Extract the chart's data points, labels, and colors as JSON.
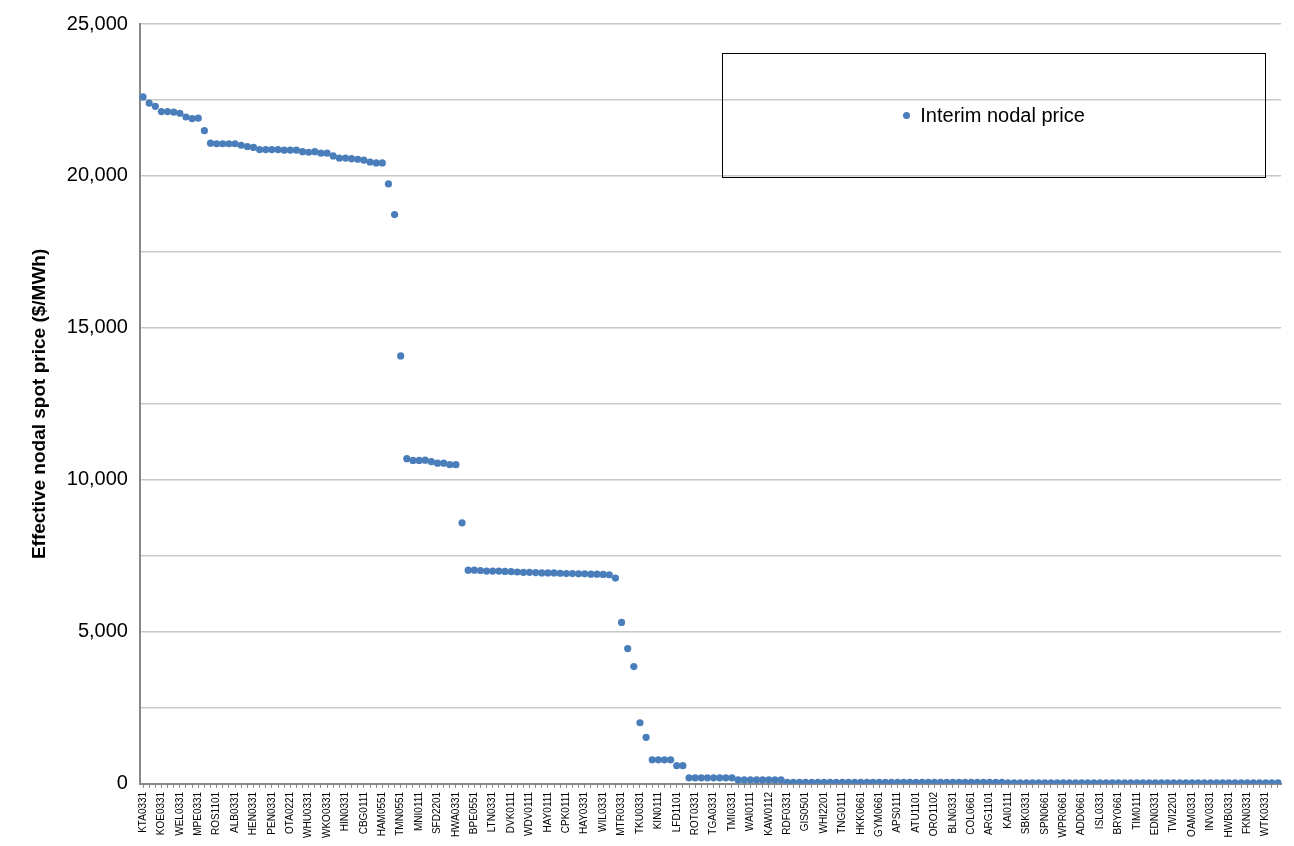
{
  "chart_data": {
    "type": "scatter",
    "ylabel": "Effective nodal spot price ($/MWh)",
    "categories": [
      "KTA0331",
      null,
      null,
      "KOE0331",
      null,
      null,
      "WEL0331",
      null,
      null,
      "MPE0331",
      null,
      null,
      "ROS1101",
      null,
      null,
      "ALB0331",
      null,
      null,
      "HEN0331",
      null,
      null,
      "PEN0331",
      null,
      null,
      "OTA0221",
      null,
      null,
      "WHU0331",
      null,
      null,
      "WKO0331",
      null,
      null,
      "HIN0331",
      null,
      null,
      "CBG0111",
      null,
      null,
      "HAM0551",
      null,
      null,
      "TMN0551",
      null,
      null,
      "MNI0111",
      null,
      null,
      "SFD2201",
      null,
      null,
      "HWA0331",
      null,
      null,
      "BPE0551",
      null,
      null,
      "LTN0331",
      null,
      null,
      "DVK0111",
      null,
      null,
      "WDV0111",
      null,
      null,
      "HAY0111",
      null,
      null,
      "CPK0111",
      null,
      null,
      "HAY0331",
      null,
      null,
      "WIL0331",
      null,
      null,
      "MTR0331",
      null,
      null,
      "TKU0331",
      null,
      null,
      "KIN0111",
      null,
      null,
      "LFD1101",
      null,
      null,
      "ROT0331",
      null,
      null,
      "TGA0331",
      null,
      null,
      "TMI0331",
      null,
      null,
      "WAI0111",
      null,
      null,
      "KAW0112",
      null,
      null,
      "RDF0331",
      null,
      null,
      "GIS0501",
      null,
      null,
      "WHI2201",
      null,
      null,
      "TNG0111",
      null,
      null,
      "HKK0661",
      null,
      null,
      "GYM0661",
      null,
      null,
      "APS0111",
      null,
      null,
      "ATU1101",
      null,
      null,
      "ORO1102",
      null,
      null,
      "BLN0331",
      null,
      null,
      "COL0661",
      null,
      null,
      "ARG1101",
      null,
      null,
      "KAI0111",
      null,
      null,
      "SBK0331",
      null,
      null,
      "SPN0661",
      null,
      null,
      "WPR0661",
      null,
      null,
      "ADD0661",
      null,
      null,
      "ISL0331",
      null,
      null,
      "BRY0661",
      null,
      null,
      "TIM0111",
      null,
      null,
      "EDN0331",
      null,
      null,
      "TWI2201",
      null,
      null,
      "OAM0331",
      null,
      null,
      "INV0331",
      null,
      null,
      "HWB0331",
      null,
      null,
      "FKN0331",
      null,
      null,
      "WTK0331",
      null,
      null
    ],
    "series": [
      {
        "name": "Interim nodal price",
        "color": "#4a7ebb",
        "values": [
          22600,
          22400,
          22290,
          22120,
          22120,
          22100,
          22060,
          21940,
          21890,
          21900,
          21490,
          21080,
          21060,
          21060,
          21060,
          21060,
          21010,
          20970,
          20940,
          20870,
          20870,
          20870,
          20870,
          20850,
          20850,
          20850,
          20800,
          20780,
          20800,
          20750,
          20750,
          20660,
          20590,
          20590,
          20570,
          20550,
          20520,
          20460,
          20430,
          20430,
          19740,
          18730,
          14080,
          10700,
          10640,
          10640,
          10650,
          10600,
          10550,
          10550,
          10500,
          10500,
          8590,
          7030,
          7030,
          7020,
          7000,
          7000,
          7000,
          6990,
          6980,
          6970,
          6960,
          6960,
          6950,
          6940,
          6940,
          6940,
          6930,
          6920,
          6920,
          6910,
          6910,
          6900,
          6900,
          6890,
          6880,
          6770,
          5310,
          4450,
          3860,
          2010,
          1530,
          790,
          790,
          790,
          790,
          600,
          600,
          200,
          200,
          200,
          200,
          200,
          200,
          200,
          200,
          130,
          130,
          130,
          130,
          130,
          130,
          130,
          130,
          50,
          50,
          50,
          50,
          50,
          50,
          50,
          50,
          50,
          50,
          50,
          50,
          50,
          50,
          50,
          50,
          50,
          50,
          50,
          50,
          50,
          50,
          50,
          50,
          50,
          50,
          50,
          50,
          50,
          50,
          50,
          50,
          50,
          50,
          50,
          50,
          30,
          30,
          30,
          30,
          30,
          30,
          30,
          30,
          30,
          30,
          30,
          30,
          30,
          30,
          30,
          30,
          30,
          30,
          30,
          30,
          30,
          30,
          30,
          30,
          30,
          30,
          30,
          30,
          30,
          30,
          30,
          30,
          30,
          30,
          30,
          30,
          30,
          30,
          30,
          30,
          30,
          30,
          30,
          30,
          30
        ]
      }
    ],
    "ylim": [
      0,
      25000
    ],
    "yticks": [
      {
        "value": 0,
        "label": "0"
      },
      {
        "value": 2500,
        "label": null
      },
      {
        "value": 5000,
        "label": "5,000"
      },
      {
        "value": 7500,
        "label": null
      },
      {
        "value": 10000,
        "label": "10,000"
      },
      {
        "value": 12500,
        "label": null
      },
      {
        "value": 15000,
        "label": "15,000"
      },
      {
        "value": 17500,
        "label": null
      },
      {
        "value": 20000,
        "label": "20,000"
      },
      {
        "value": 22500,
        "label": null
      },
      {
        "value": 25000,
        "label": "25,000"
      }
    ],
    "grid": "y",
    "legend": "top right",
    "marker": "circle"
  }
}
